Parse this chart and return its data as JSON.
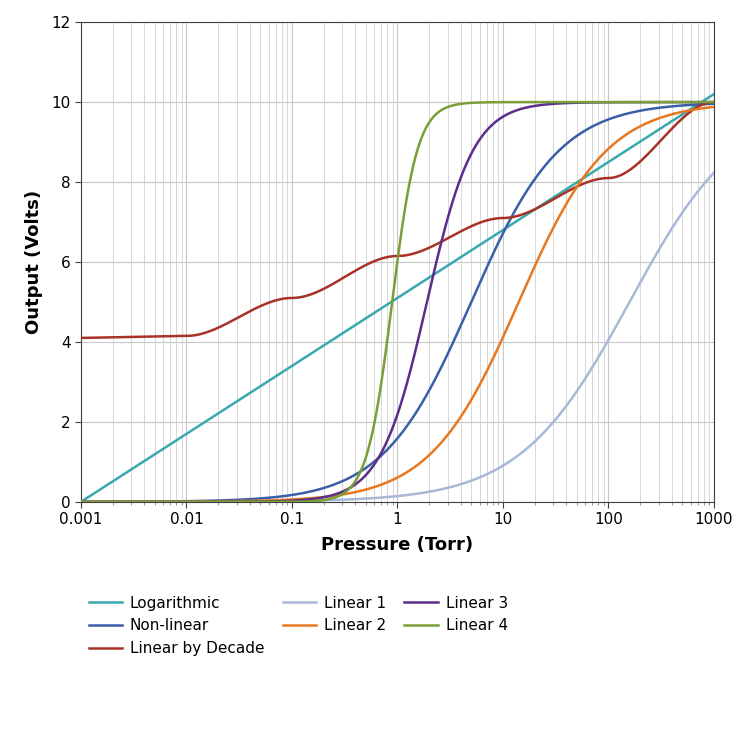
{
  "title": "",
  "xlabel": "Pressure (Torr)",
  "ylabel": "Output (Volts)",
  "ylim": [
    0,
    12
  ],
  "yticks": [
    0,
    2,
    4,
    6,
    8,
    10,
    12
  ],
  "background_color": "#ffffff",
  "grid_color": "#c8c8c8",
  "curves": {
    "Logarithmic": {
      "color": "#39a9b0",
      "lw": 1.8
    },
    "Non-linear": {
      "color": "#3a5fa8",
      "lw": 1.8
    },
    "Linear by Decade": {
      "color": "#a93226",
      "lw": 1.8
    },
    "Linear 1": {
      "color": "#a8b8d8",
      "lw": 1.8
    },
    "Linear 2": {
      "color": "#e87820",
      "lw": 1.8
    },
    "Linear 3": {
      "color": "#5c2d8a",
      "lw": 1.8
    },
    "Linear 4": {
      "color": "#7a9e38",
      "lw": 1.8
    }
  }
}
